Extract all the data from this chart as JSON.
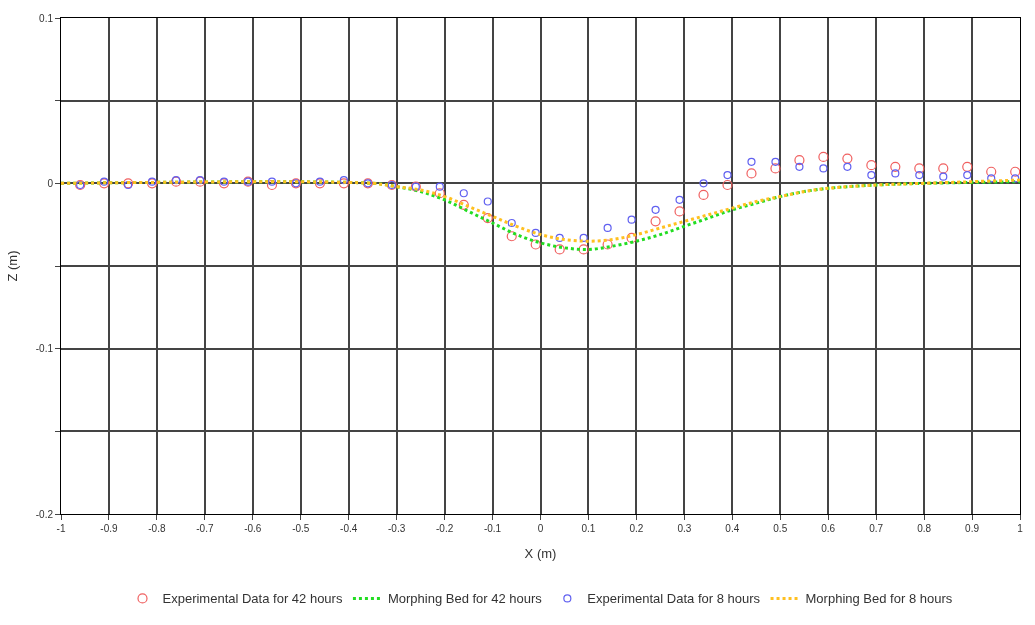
{
  "chart_data": {
    "type": "scatter",
    "xlabel": "X (m)",
    "ylabel": "Z (m)",
    "xlim": [
      -1,
      1
    ],
    "ylim": [
      -0.2,
      0.1
    ],
    "xticks": [
      -1,
      -0.9,
      -0.8,
      -0.7,
      -0.6,
      -0.5,
      -0.4,
      -0.3,
      -0.2,
      -0.1,
      0,
      0.1,
      0.2,
      0.3,
      0.4,
      0.5,
      0.6,
      0.7,
      0.8,
      0.9,
      1
    ],
    "yticks": [
      -0.2,
      {
        "value": -0.15,
        "label": null
      },
      -0.1,
      {
        "value": -0.05,
        "label": null
      },
      0,
      {
        "value": 0.05,
        "label": null
      },
      0.1
    ],
    "grid": true,
    "legend": "bottom",
    "series": [
      {
        "name": "Experimental Data for 42 hours",
        "marker": "circle",
        "color": "#f06060",
        "x": [
          -0.96,
          -0.91,
          -0.86,
          -0.81,
          -0.76,
          -0.71,
          -0.66,
          -0.61,
          -0.56,
          -0.51,
          -0.46,
          -0.41,
          -0.36,
          -0.31,
          -0.26,
          -0.21,
          -0.16,
          -0.11,
          -0.06,
          -0.01,
          0.04,
          0.09,
          0.14,
          0.19,
          0.24,
          0.29,
          0.34,
          0.39,
          0.44,
          0.49,
          0.54,
          0.59,
          0.64,
          0.69,
          0.74,
          0.79,
          0.84,
          0.89,
          0.94,
          0.99
        ],
        "values": [
          -0.001,
          0,
          0,
          0,
          0.001,
          0.001,
          0,
          0.001,
          -0.001,
          0,
          0,
          0,
          0,
          -0.001,
          -0.002,
          -0.006,
          -0.013,
          -0.021,
          -0.032,
          -0.037,
          -0.04,
          -0.04,
          -0.037,
          -0.033,
          -0.023,
          -0.017,
          -0.007,
          -0.001,
          0.006,
          0.009,
          0.014,
          0.016,
          0.015,
          0.011,
          0.01,
          0.009,
          0.009,
          0.01,
          0.007,
          0.007
        ]
      },
      {
        "name": "Morphing Bed for 42 hours",
        "type": "line",
        "line_style": "dotted",
        "color": "#22dd22",
        "x": [
          -1,
          -0.35,
          -0.3,
          -0.25,
          -0.2,
          -0.15,
          -0.1,
          -0.05,
          0,
          0.05,
          0.1,
          0.15,
          0.2,
          0.25,
          0.3,
          0.35,
          0.4,
          0.45,
          0.5,
          0.55,
          0.6,
          0.7,
          0.8,
          1
        ],
        "values": [
          0,
          0,
          -0.002,
          -0.005,
          -0.01,
          -0.017,
          -0.024,
          -0.031,
          -0.036,
          -0.039,
          -0.04,
          -0.038,
          -0.035,
          -0.031,
          -0.026,
          -0.021,
          -0.016,
          -0.012,
          -0.008,
          -0.005,
          -0.003,
          -0.001,
          0,
          0.001
        ]
      },
      {
        "name": "Experimental Data for 8 hours",
        "marker": "circle",
        "color": "#6060f0",
        "x": [
          -0.96,
          -0.91,
          -0.86,
          -0.81,
          -0.76,
          -0.71,
          -0.66,
          -0.61,
          -0.56,
          -0.51,
          -0.46,
          -0.41,
          -0.36,
          -0.31,
          -0.26,
          -0.21,
          -0.16,
          -0.11,
          -0.06,
          -0.01,
          0.04,
          0.09,
          0.14,
          0.19,
          0.24,
          0.29,
          0.34,
          0.39,
          0.44,
          0.49,
          0.54,
          0.59,
          0.64,
          0.69,
          0.74,
          0.79,
          0.84,
          0.89,
          0.94,
          0.99
        ],
        "values": [
          -0.001,
          0.001,
          -0.001,
          0.001,
          0.002,
          0.002,
          0.001,
          0.001,
          0.001,
          0,
          0.001,
          0.002,
          0,
          -0.001,
          -0.002,
          -0.002,
          -0.006,
          -0.011,
          -0.024,
          -0.03,
          -0.033,
          -0.033,
          -0.027,
          -0.022,
          -0.016,
          -0.01,
          0,
          0.005,
          0.013,
          0.013,
          0.01,
          0.009,
          0.01,
          0.005,
          0.006,
          0.005,
          0.004,
          0.005,
          0.003,
          0.003
        ]
      },
      {
        "name": "Morphing Bed for 8 hours",
        "type": "line",
        "line_style": "dotted",
        "color": "#ffc020",
        "x": [
          -1,
          -0.35,
          -0.3,
          -0.25,
          -0.2,
          -0.15,
          -0.1,
          -0.05,
          0,
          0.05,
          0.1,
          0.15,
          0.2,
          0.25,
          0.3,
          0.35,
          0.4,
          0.45,
          0.5,
          0.55,
          0.6,
          0.7,
          0.8,
          1
        ],
        "values": [
          0,
          0,
          -0.002,
          -0.004,
          -0.008,
          -0.014,
          -0.02,
          -0.026,
          -0.031,
          -0.034,
          -0.035,
          -0.034,
          -0.031,
          -0.027,
          -0.023,
          -0.019,
          -0.015,
          -0.011,
          -0.008,
          -0.005,
          -0.003,
          -0.001,
          0,
          0.002
        ]
      }
    ]
  }
}
